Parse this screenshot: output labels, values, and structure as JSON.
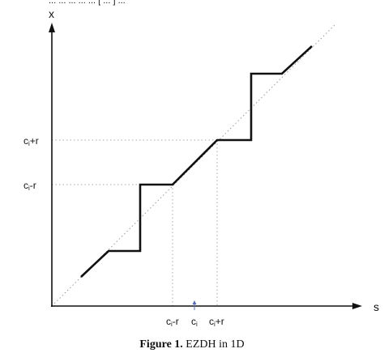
{
  "top_fragment": "... ... ... ... ... [ ... ] ...",
  "axes": {
    "x_axis_label": "s",
    "y_axis_label": "x"
  },
  "y_ticks": {
    "upper": "c",
    "upper_sub": "i",
    "upper_suffix": "+r",
    "lower": "c",
    "lower_sub": "i",
    "lower_suffix": "-r"
  },
  "x_ticks": {
    "left": "c",
    "left_sub": "i",
    "left_suffix": "-r",
    "center": "c",
    "center_sub": "i",
    "right": "c",
    "right_sub": "i",
    "right_suffix": "+r"
  },
  "caption": {
    "figure_number": "Figure 1.",
    "title": "EZDH in 1D"
  },
  "colors": {
    "staircase": "#111111",
    "diagonal": "#9a9a9a",
    "axes": "#111111",
    "guides": "#a8a8a8",
    "center_marker": "#5a6fb0"
  }
}
